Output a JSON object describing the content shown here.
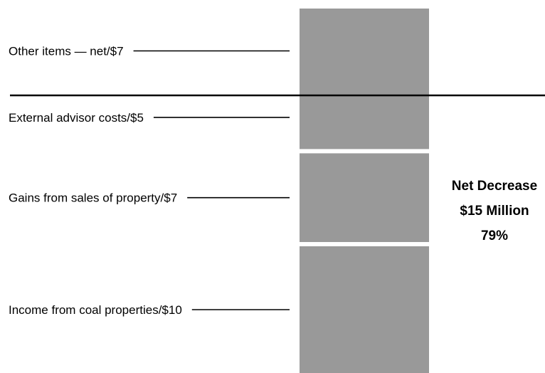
{
  "chart_data": {
    "type": "bar",
    "orientation": "vertical-stacked",
    "bar_color": "#999999",
    "leader_color": "#000000",
    "divider_color": "#000000",
    "unit": "$",
    "segments_below_divider": [
      {
        "label": "Income from coal properties/$10",
        "value": 10
      },
      {
        "label": "Gains from sales of property/$7",
        "value": 7
      },
      {
        "label": "External advisor costs/$5",
        "value": 5
      }
    ],
    "segments_above_divider": [
      {
        "label": "Other items — net/$7",
        "value": 7
      }
    ],
    "annotation": {
      "lines": [
        "Net Decrease",
        "$15 Million",
        "79%"
      ]
    }
  }
}
